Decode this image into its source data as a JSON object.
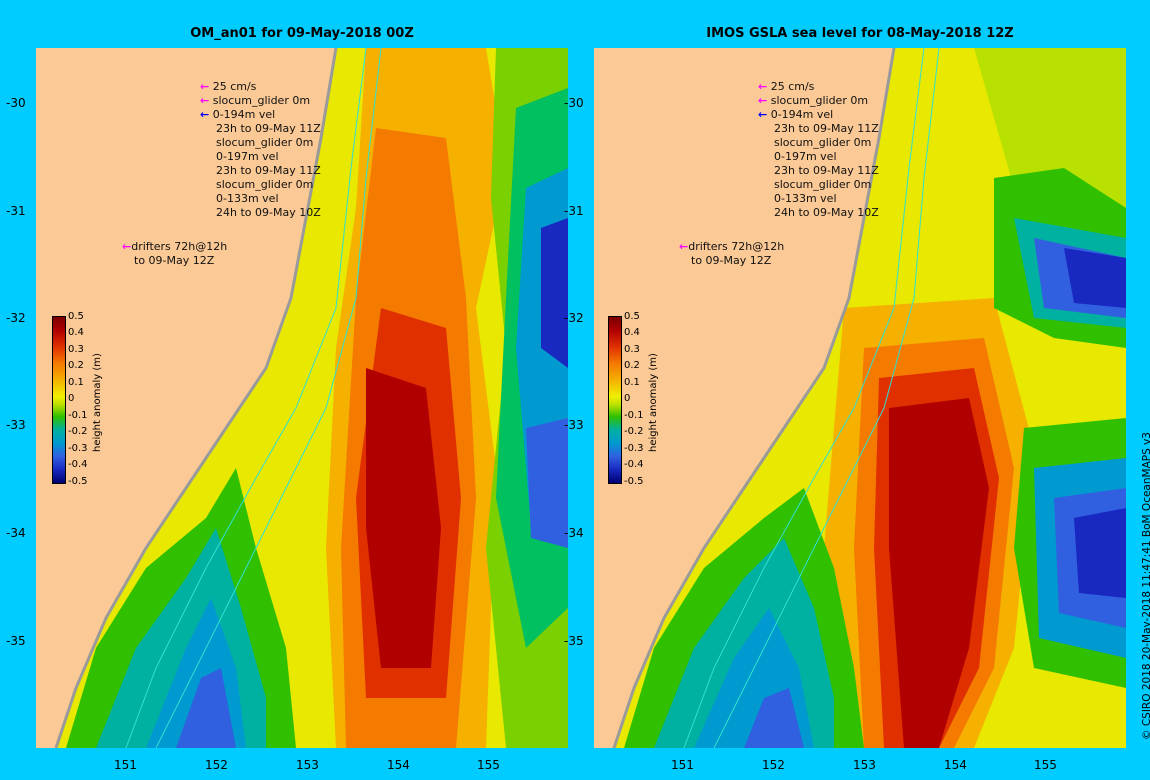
{
  "panels": [
    {
      "title": "OM_an01 for 09-May-2018 00Z",
      "legend_lines": [
        "25 cm/s",
        "slocum_glider 0m",
        "0-194m vel",
        "23h to 09-May 11Z",
        "slocum_glider 0m",
        "0-197m vel",
        "23h to 09-May 11Z",
        "slocum_glider 0m",
        "0-133m vel",
        "24h to 09-May 10Z"
      ],
      "drifter_lines": [
        "drifters 72h@12h",
        "to 09-May 12Z"
      ]
    },
    {
      "title": "IMOS GSLA sea level  for 08-May-2018 12Z",
      "legend_lines": [
        "25 cm/s",
        "slocum_glider 0m",
        "0-194m vel",
        "23h to 09-May 11Z",
        "slocum_glider 0m",
        "0-197m vel",
        "23h to 09-May 11Z",
        "slocum_glider 0m",
        "0-133m vel",
        "24h to 09-May 10Z"
      ],
      "drifter_lines": [
        "drifters 72h@12h",
        "to 09-May 12Z"
      ]
    }
  ],
  "axes": {
    "lat_ticks": [
      "-30",
      "-31",
      "-32",
      "-33",
      "-34",
      "-35"
    ],
    "lon_ticks": [
      "151",
      "152",
      "153",
      "154",
      "155"
    ]
  },
  "colorbar": {
    "title": "height anomaly (m)",
    "ticks": [
      "0.5",
      "0.4",
      "0.3",
      "0.2",
      "0.1",
      "0",
      "-0.1",
      "-0.2",
      "-0.3",
      "-0.4",
      "-0.5"
    ]
  },
  "credit": "© CSIRO 2018   20-May-2018 11:47:41 BoM OceanMAPS v3",
  "colors": {
    "background": "#00ccff",
    "land": "#fbc995",
    "arrow_magenta": "#ff00ff",
    "arrow_blue": "#0000ff"
  }
}
